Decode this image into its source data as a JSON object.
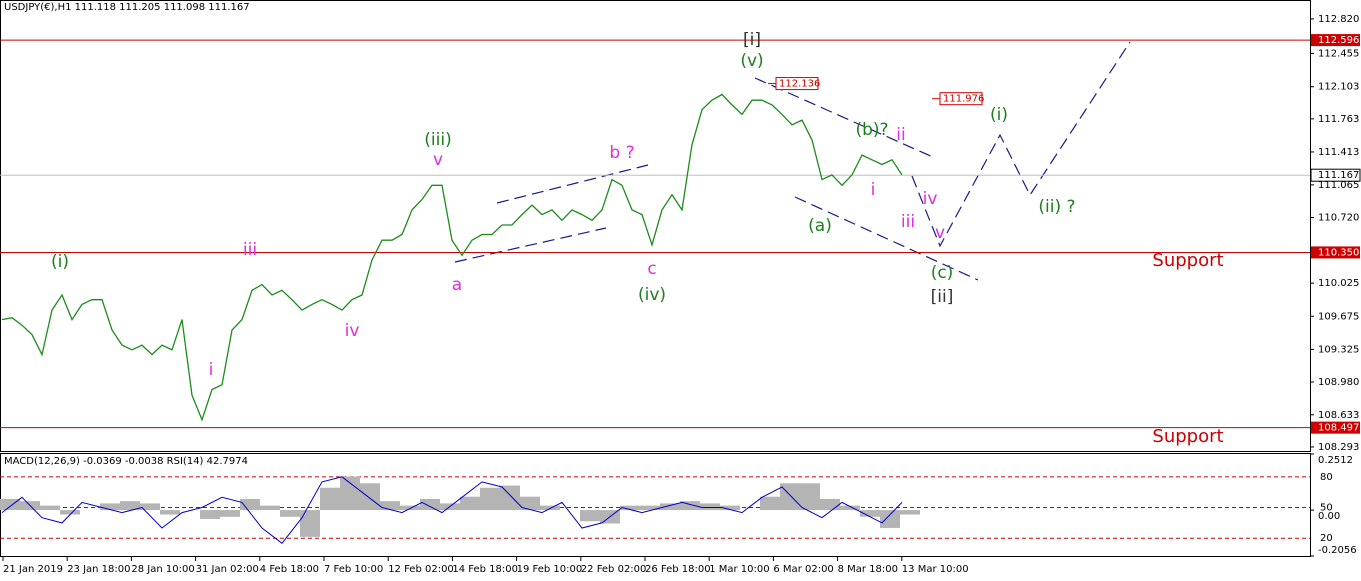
{
  "chart_data": {
    "type": "line",
    "title": "USDJPY(€),H1  111.118 111.205 111.098 111.167",
    "x_axis_labels": [
      "21 Jan 2019",
      "23 Jan 18:00",
      "28 Jan 10:00",
      "31 Jan 02:00",
      "4 Feb 18:00",
      "7 Feb 10:00",
      "12 Feb 02:00",
      "14 Feb 18:00",
      "19 Feb 10:00",
      "22 Feb 02:00",
      "26 Feb 18:00",
      "1 Mar 10:00",
      "6 Mar 02:00",
      "8 Mar 18:00",
      "13 Mar 10:00"
    ],
    "values": [
      109.64,
      109.66,
      109.58,
      109.48,
      109.27,
      109.74,
      109.9,
      109.64,
      109.8,
      109.85,
      109.85,
      109.53,
      109.37,
      109.32,
      109.37,
      109.27,
      109.37,
      109.32,
      109.64,
      108.84,
      108.58,
      108.9,
      108.95,
      109.53,
      109.64,
      109.95,
      110.01,
      109.9,
      109.95,
      109.85,
      109.74,
      109.8,
      109.85,
      109.8,
      109.74,
      109.85,
      109.9,
      110.27,
      110.48,
      110.48,
      110.54,
      110.8,
      110.91,
      111.06,
      111.06,
      110.48,
      110.32,
      110.48,
      110.54,
      110.54,
      110.64,
      110.64,
      110.75,
      110.85,
      110.75,
      110.8,
      110.69,
      110.8,
      110.75,
      110.69,
      110.8,
      111.12,
      111.06,
      110.8,
      110.75,
      110.43,
      110.8,
      110.96,
      110.8,
      111.49,
      111.86,
      111.96,
      112.02,
      111.91,
      111.81,
      111.96,
      111.96,
      111.91,
      111.81,
      111.7,
      111.75,
      111.54,
      111.12,
      111.17,
      111.06,
      111.17,
      111.38,
      111.33,
      111.28,
      111.33,
      111.17
    ],
    "color": "#1c8c1c",
    "ylim": [
      108.25,
      113.02
    ],
    "yticks": [
      {
        "value": 112.82,
        "label": "112.820"
      },
      112.455,
      112.103,
      111.763,
      111.413,
      111.065,
      {
        "value": 110.72,
        "label": "110.720"
      },
      110.025,
      109.675,
      109.325,
      {
        "value": 108.98,
        "label": "108.980"
      },
      108.633,
      108.293
    ],
    "levels": [
      112.596,
      {
        "value": 110.35,
        "label": "110.350"
      },
      108.497
    ],
    "level_color": "#cc0000",
    "last_price": 111.167,
    "price_boxes": [
      112.136,
      111.976
    ],
    "annotations": [
      {
        "text": "(i)",
        "color": "#1e7e1e"
      },
      {
        "text": "iii",
        "color": "#e02ee0"
      },
      {
        "text": "i",
        "color": "#e02ee0"
      },
      {
        "text": "iv",
        "color": "#e02ee0"
      },
      {
        "text": "(iii)",
        "color": "#1e7e1e"
      },
      {
        "text": "v",
        "color": "#e02ee0"
      },
      {
        "text": "a",
        "color": "#e02ee0"
      },
      {
        "text": "b ?",
        "color": "#e02ee0"
      },
      {
        "text": "c",
        "color": "#e02ee0"
      },
      {
        "text": "(iv)",
        "color": "#1e7e1e"
      },
      {
        "text": "[i]",
        "color": "#333333"
      },
      {
        "text": "(v)",
        "color": "#1e7e1e"
      },
      {
        "text": "(a)",
        "color": "#1e7e1e"
      },
      {
        "text": "(b)?",
        "color": "#1e7e1e"
      },
      {
        "text": "ii",
        "color": "#e02ee0"
      },
      {
        "text": "i",
        "color": "#e02ee0"
      },
      {
        "text": "iv",
        "color": "#e02ee0"
      },
      {
        "text": "iii",
        "color": "#e02ee0"
      },
      {
        "text": "v",
        "color": "#e02ee0"
      },
      {
        "text": "(c)",
        "color": "#1e7e1e"
      },
      {
        "text": "[ii]",
        "color": "#333333"
      },
      {
        "text": "(i)",
        "color": "#1e7e1e"
      },
      {
        "text": "(ii) ?",
        "color": "#1e7e1e"
      },
      {
        "text": "Support",
        "color": "#cc0000"
      },
      {
        "text": "Support",
        "color": "#cc0000"
      }
    ],
    "indicator": {
      "title": "MACD(12,26,9) -0.0369 -0.0038 RSI(14) 42.7974",
      "macd": [
        0.05,
        0.04,
        0.02,
        -0.02,
        0.0,
        0.03,
        0.04,
        0.03,
        -0.02,
        0.0,
        -0.04,
        -0.03,
        0.05,
        0.02,
        -0.03,
        -0.12,
        0.1,
        0.15,
        0.12,
        0.04,
        0.02,
        0.05,
        0.03,
        0.06,
        0.1,
        0.11,
        0.06,
        0.02,
        0.0,
        -0.05,
        -0.06,
        0.02,
        0.02,
        0.03,
        0.04,
        0.03,
        0.02,
        0.0,
        0.06,
        0.12,
        0.12,
        0.05,
        0.02,
        -0.03,
        -0.08,
        -0.02
      ],
      "macd_color": "#b4b4b4",
      "macd_lim": [
        -0.2056,
        0.2512
      ],
      "macd_ticks": [
        0.2512,
        {
          "value": 0,
          "label": "0.00"
        },
        -0.2056
      ],
      "rsi": [
        45,
        60,
        40,
        35,
        55,
        50,
        45,
        50,
        30,
        45,
        50,
        60,
        55,
        30,
        15,
        40,
        75,
        80,
        65,
        50,
        45,
        55,
        45,
        60,
        75,
        70,
        50,
        45,
        55,
        30,
        35,
        50,
        45,
        50,
        55,
        50,
        50,
        45,
        60,
        70,
        50,
        40,
        55,
        45,
        35,
        55
      ],
      "rsi_color": "#0000cc",
      "rsi_lim": [
        2.6,
        102.3
      ],
      "rsi_ticks": [
        80,
        50,
        20
      ]
    }
  }
}
